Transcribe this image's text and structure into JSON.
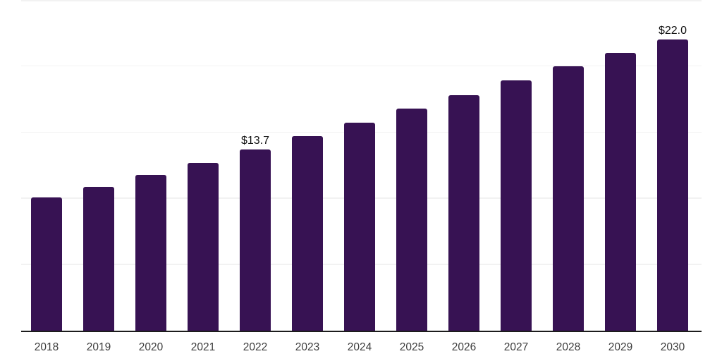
{
  "chart_data": {
    "type": "bar",
    "title": "",
    "xlabel": "",
    "ylabel": "",
    "categories": [
      "2018",
      "2019",
      "2020",
      "2021",
      "2022",
      "2023",
      "2024",
      "2025",
      "2026",
      "2027",
      "2028",
      "2029",
      "2030"
    ],
    "values": [
      10.1,
      10.9,
      11.8,
      12.7,
      13.7,
      14.7,
      15.7,
      16.8,
      17.8,
      18.9,
      20.0,
      21.0,
      22.0
    ],
    "data_labels": {
      "2022": "$13.7",
      "2030": "$22.0"
    },
    "value_prefix": "$",
    "ylim": [
      0,
      25
    ],
    "gridline_values": [
      5,
      10,
      15,
      20,
      25
    ],
    "grid": "on",
    "legend": "none",
    "colors": {
      "bar": "#371253",
      "axis_line": "#1c1c1c",
      "gridline": "#f2f2f2",
      "x_label": "#3d3d3d",
      "data_label": "#111111",
      "background": "#ffffff"
    }
  }
}
